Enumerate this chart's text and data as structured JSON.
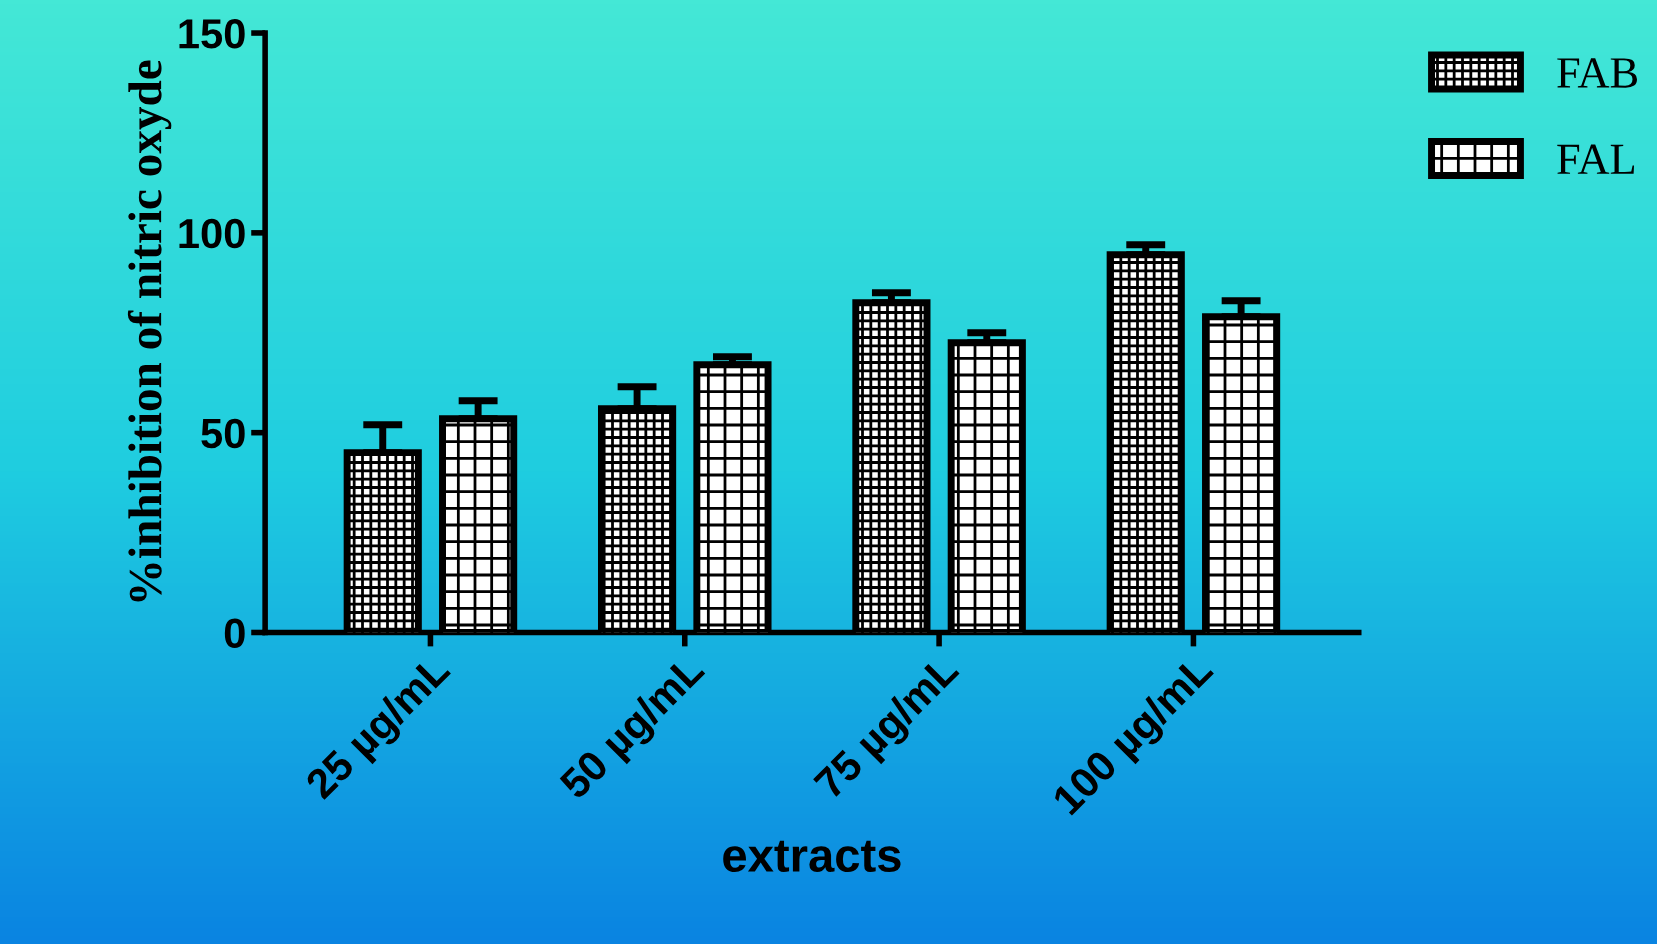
{
  "chart_data": {
    "type": "bar",
    "xlabel": "extracts",
    "ylabel": "%inhibition of nitric oxyde",
    "categories": [
      "25 µg/mL",
      "50 µg/mL",
      "75 µg/mL",
      "100 µg/mL"
    ],
    "series": [
      {
        "name": "FAB",
        "color": "#000000",
        "values": [
          45,
          56,
          82.5,
          94.5
        ],
        "errors": [
          [
            45,
            52
          ],
          [
            56,
            61.5
          ],
          [
            82.5,
            85
          ],
          [
            94.5,
            97
          ]
        ]
      },
      {
        "name": "FAL",
        "color": "#000000",
        "values": [
          53.5,
          67,
          72.5,
          79
        ],
        "errors": [
          [
            53.5,
            58
          ],
          [
            67,
            69
          ],
          [
            72.5,
            75
          ],
          [
            79,
            83
          ]
        ]
      }
    ],
    "ylim": [
      0,
      150
    ],
    "yticks": [
      0,
      50,
      100,
      150
    ],
    "grid": false,
    "legend": "top right"
  }
}
